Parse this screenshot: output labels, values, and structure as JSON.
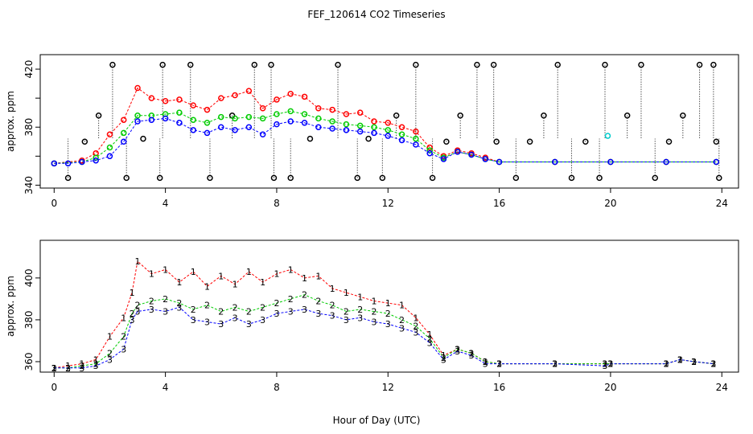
{
  "figure": {
    "title": "FEF_120614  CO2 Timeseries",
    "xlabel": "Hour of Day (UTC)"
  },
  "colors": {
    "series1": "#ff0000",
    "series2": "#00cc00",
    "series3": "#0000ff",
    "series4": "#00cccc",
    "raw": "#000000"
  },
  "chart_data": [
    {
      "type": "scatter",
      "panel": "top",
      "ylabel": "approx. ppm",
      "xlim": [
        -0.5,
        24.6
      ],
      "ylim": [
        338,
        430
      ],
      "xticks": [
        0,
        4,
        8,
        12,
        16,
        20,
        24
      ],
      "yticks": [
        340,
        360,
        380,
        400,
        420
      ],
      "ytick_labels": [
        "340",
        "380",
        "420"
      ],
      "grid": false,
      "series": [
        {
          "key": "s1",
          "color": "#ff0000",
          "x": [
            0.0,
            1.0,
            1.5,
            2.0,
            2.5,
            3.0,
            3.5,
            4.0,
            4.5,
            5.0,
            5.5,
            6.0,
            6.5,
            7.0,
            7.5,
            8.0,
            8.5,
            9.0,
            9.5,
            10.0,
            10.5,
            11.0,
            11.5,
            12.0,
            12.5,
            13.0,
            13.5,
            14.0,
            14.5,
            15.0,
            15.5,
            16.0,
            18.0,
            20.0,
            22.0,
            23.8
          ],
          "y": [
            355,
            357,
            362,
            375,
            385,
            407,
            400,
            398,
            399,
            395,
            392,
            400,
            402,
            405,
            393,
            399,
            403,
            401,
            393,
            392,
            389,
            390,
            384,
            383,
            380,
            377,
            366,
            360,
            364,
            362,
            359,
            356,
            356,
            356,
            356,
            356
          ]
        },
        {
          "key": "s2",
          "color": "#00cc00",
          "x": [
            0.0,
            1.0,
            1.5,
            2.0,
            2.5,
            3.0,
            3.5,
            4.0,
            4.5,
            5.0,
            5.5,
            6.0,
            6.5,
            7.0,
            7.5,
            8.0,
            8.5,
            9.0,
            9.5,
            10.0,
            10.5,
            11.0,
            11.5,
            12.0,
            12.5,
            13.0,
            13.5,
            14.0,
            14.5,
            15.0,
            15.5,
            16.0,
            18.0,
            20.0,
            22.0,
            23.8
          ],
          "y": [
            355,
            356,
            359,
            366,
            376,
            388,
            388,
            389,
            390,
            385,
            383,
            387,
            386,
            387,
            386,
            389,
            391,
            389,
            386,
            384,
            382,
            381,
            380,
            378,
            375,
            372,
            364,
            359,
            363,
            361,
            358,
            356,
            356,
            356,
            356,
            356
          ]
        },
        {
          "key": "s3",
          "color": "#0000ff",
          "x": [
            0.0,
            0.5,
            1.0,
            1.5,
            2.0,
            2.5,
            3.0,
            3.5,
            4.0,
            4.5,
            5.0,
            5.5,
            6.0,
            6.5,
            7.0,
            7.5,
            8.0,
            8.5,
            9.0,
            9.5,
            10.0,
            10.5,
            11.0,
            11.5,
            12.0,
            12.5,
            13.0,
            13.5,
            14.0,
            14.5,
            15.0,
            15.5,
            16.0,
            18.0,
            20.0,
            22.0,
            23.8
          ],
          "y": [
            355,
            355,
            356,
            357,
            360,
            370,
            384,
            385,
            386,
            383,
            378,
            376,
            380,
            378,
            380,
            375,
            382,
            384,
            383,
            380,
            379,
            378,
            377,
            376,
            374,
            371,
            368,
            362,
            358,
            363,
            361,
            358,
            356,
            356,
            356,
            356,
            356
          ]
        },
        {
          "key": "s4",
          "color": "#00cccc",
          "x": [
            19.9
          ],
          "y": [
            374
          ]
        }
      ],
      "raw_markers": {
        "color": "#000000",
        "x": [
          0.5,
          1.1,
          1.6,
          2.1,
          2.6,
          3.2,
          3.8,
          3.9,
          4.9,
          5.6,
          6.4,
          7.2,
          7.8,
          7.9,
          8.5,
          9.2,
          10.2,
          10.9,
          11.3,
          11.8,
          12.3,
          13.0,
          13.6,
          14.1,
          14.6,
          15.2,
          15.8,
          15.9,
          16.6,
          17.1,
          17.6,
          18.1,
          18.6,
          19.1,
          19.6,
          19.8,
          20.6,
          21.1,
          21.6,
          22.1,
          22.6,
          23.2,
          23.7,
          23.8,
          23.9
        ],
        "y": [
          345,
          370,
          388,
          423,
          345,
          372,
          345,
          423,
          423,
          345,
          388,
          423,
          423,
          345,
          345,
          372,
          423,
          345,
          372,
          345,
          388,
          423,
          345,
          370,
          388,
          423,
          423,
          370,
          345,
          370,
          388,
          423,
          345,
          370,
          345,
          423,
          388,
          423,
          345,
          370,
          388,
          423,
          423,
          370,
          345
        ]
      }
    },
    {
      "type": "scatter",
      "panel": "bottom",
      "ylabel": "approx. ppm",
      "xlim": [
        -0.5,
        24.6
      ],
      "ylim": [
        355,
        418
      ],
      "xticks": [
        0,
        4,
        8,
        12,
        16,
        20,
        24
      ],
      "yticks": [
        360,
        380,
        400
      ],
      "grid": false,
      "series": [
        {
          "key": "s1",
          "color": "#ff0000",
          "label": "1",
          "x": [
            0.0,
            0.5,
            1.0,
            1.5,
            2.0,
            2.5,
            2.8,
            3.0,
            3.5,
            4.0,
            4.5,
            5.0,
            5.5,
            6.0,
            6.5,
            7.0,
            7.5,
            8.0,
            8.5,
            9.0,
            9.5,
            10.0,
            10.5,
            11.0,
            11.5,
            12.0,
            12.5,
            13.0,
            13.5,
            14.0,
            14.5,
            15.0,
            15.5,
            16.0,
            18.0,
            19.8,
            20.0,
            22.0,
            22.5,
            23.0,
            23.7
          ],
          "y": [
            357,
            358,
            359,
            361,
            372,
            381,
            393,
            408,
            402,
            404,
            398,
            403,
            396,
            401,
            397,
            403,
            398,
            402,
            404,
            400,
            401,
            395,
            393,
            391,
            389,
            388,
            387,
            381,
            373,
            363,
            366,
            364,
            360,
            359,
            359,
            359,
            359,
            359,
            361,
            360,
            359
          ]
        },
        {
          "key": "s2",
          "color": "#00cc00",
          "label": "2",
          "x": [
            0.0,
            0.5,
            1.0,
            1.5,
            2.0,
            2.5,
            2.8,
            3.0,
            3.5,
            4.0,
            4.5,
            5.0,
            5.5,
            6.0,
            6.5,
            7.0,
            7.5,
            8.0,
            8.5,
            9.0,
            9.5,
            10.0,
            10.5,
            11.0,
            11.5,
            12.0,
            12.5,
            13.0,
            13.5,
            14.0,
            14.5,
            15.0,
            15.5,
            16.0,
            18.0,
            19.8,
            20.0,
            22.0,
            22.5,
            23.0,
            23.7
          ],
          "y": [
            357,
            357,
            358,
            359,
            364,
            372,
            383,
            387,
            389,
            390,
            388,
            385,
            387,
            384,
            386,
            384,
            386,
            388,
            390,
            392,
            389,
            387,
            384,
            385,
            384,
            383,
            380,
            377,
            371,
            362,
            366,
            364,
            360,
            359,
            359,
            359,
            359,
            359,
            361,
            360,
            359
          ]
        },
        {
          "key": "s3",
          "color": "#0000ff",
          "label": "3",
          "x": [
            0.0,
            0.5,
            1.0,
            1.5,
            2.0,
            2.5,
            2.8,
            3.0,
            3.5,
            4.0,
            4.5,
            5.0,
            5.5,
            6.0,
            6.5,
            7.0,
            7.5,
            8.0,
            8.5,
            9.0,
            9.5,
            10.0,
            10.5,
            11.0,
            11.5,
            12.0,
            12.5,
            13.0,
            13.5,
            14.0,
            14.5,
            15.0,
            15.5,
            16.0,
            18.0,
            19.8,
            20.0,
            22.0,
            22.5,
            23.0,
            23.7
          ],
          "y": [
            357,
            357,
            357,
            358,
            361,
            366,
            380,
            384,
            385,
            384,
            386,
            380,
            379,
            378,
            381,
            378,
            380,
            383,
            384,
            385,
            383,
            382,
            380,
            381,
            379,
            378,
            376,
            374,
            369,
            361,
            365,
            363,
            359,
            359,
            359,
            358,
            359,
            359,
            361,
            360,
            359
          ]
        }
      ]
    }
  ]
}
